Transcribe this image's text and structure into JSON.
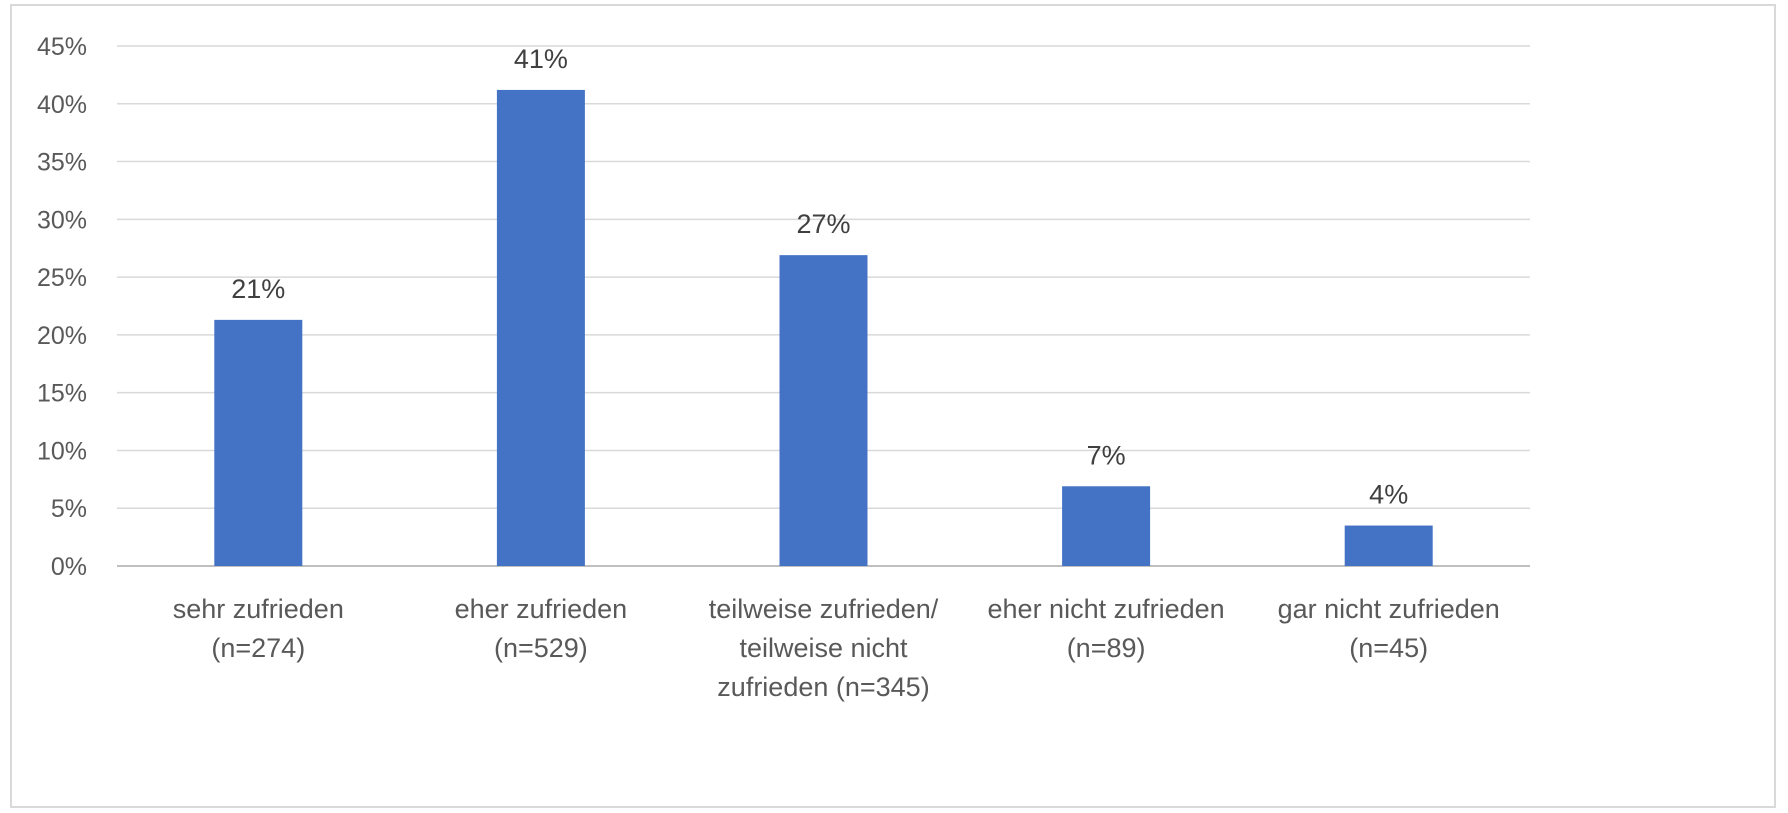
{
  "chart_data": {
    "type": "bar",
    "title": "",
    "xlabel": "",
    "ylabel": "",
    "categories": [
      [
        "sehr zufrieden",
        "(n=274)"
      ],
      [
        "eher zufrieden",
        "(n=529)"
      ],
      [
        "teilweise zufrieden/",
        "teilweise nicht",
        "zufrieden (n=345)"
      ],
      [
        "eher nicht zufrieden",
        "(n=89)"
      ],
      [
        "gar nicht zufrieden",
        "(n=45)"
      ]
    ],
    "values": [
      21.3,
      41.2,
      26.9,
      6.9,
      3.5
    ],
    "data_labels": [
      "21%",
      "41%",
      "27%",
      "7%",
      "4%"
    ],
    "ylim": [
      0,
      45
    ],
    "yticks": [
      0,
      5,
      10,
      15,
      20,
      25,
      30,
      35,
      40,
      45
    ],
    "ytick_labels": [
      "0%",
      "5%",
      "10%",
      "15%",
      "20%",
      "25%",
      "30%",
      "35%",
      "40%",
      "45%"
    ],
    "grid": true,
    "legend": "none",
    "bar_color": "#4472c4"
  }
}
